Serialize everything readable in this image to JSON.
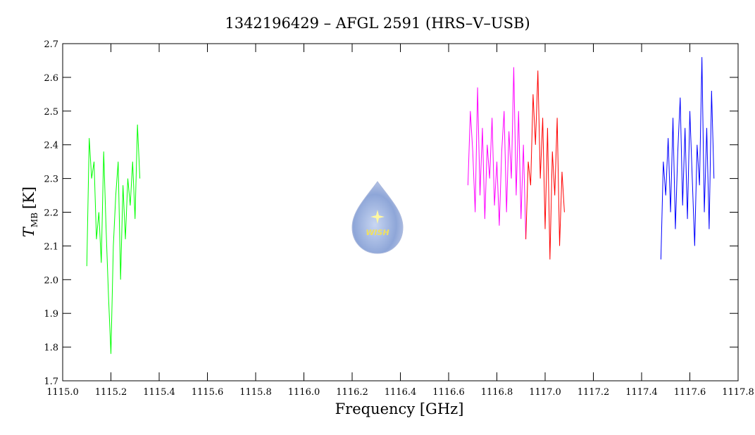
{
  "chart_data": {
    "type": "line",
    "title": "1342196429 – AFGL 2591 (HRS–V–USB)",
    "xlabel": "Frequency [GHz]",
    "ylabel": {
      "symbol": "T",
      "subscript": "MB",
      "unit": "[K]"
    },
    "logo_text": "WISH",
    "xlim": [
      1115.0,
      1117.8
    ],
    "ylim": [
      1.7,
      2.7
    ],
    "xticks": [
      {
        "value": 1115.0,
        "label": "1115.0"
      },
      1115.2,
      1115.4,
      1115.6,
      1115.8,
      {
        "value": 1116.0,
        "label": "1116.0"
      },
      1116.2,
      1116.4,
      1116.6,
      1116.8,
      {
        "value": 1117.0,
        "label": "1117.0"
      },
      1117.2,
      1117.4,
      1117.6,
      1117.8
    ],
    "yticks": [
      1.7,
      1.8,
      1.9,
      {
        "value": 2.0,
        "label": "2.0"
      },
      2.1,
      2.2,
      2.3,
      2.4,
      2.5,
      2.6,
      2.7
    ],
    "series": [
      {
        "color": "#00ff00",
        "x": [
          1115.1,
          1115.11,
          1115.12,
          1115.13,
          1115.14,
          1115.15,
          1115.16,
          1115.17,
          1115.18,
          1115.19,
          1115.2,
          1115.21,
          1115.22,
          1115.23,
          1115.24,
          1115.25,
          1115.26,
          1115.27,
          1115.28,
          1115.29,
          1115.3,
          1115.31,
          1115.32
        ],
        "values": [
          2.04,
          2.42,
          2.3,
          2.35,
          2.12,
          2.2,
          2.05,
          2.38,
          2.15,
          1.95,
          1.78,
          2.1,
          2.25,
          2.35,
          2.0,
          2.28,
          2.12,
          2.3,
          2.22,
          2.35,
          2.18,
          2.46,
          2.3
        ]
      },
      {
        "color": "#ff00ff",
        "x": [
          1116.68,
          1116.69,
          1116.7,
          1116.71,
          1116.72,
          1116.73,
          1116.74,
          1116.75,
          1116.76,
          1116.77,
          1116.78,
          1116.79,
          1116.8,
          1116.81,
          1116.82,
          1116.83,
          1116.84,
          1116.85,
          1116.86,
          1116.87,
          1116.88,
          1116.89,
          1116.9,
          1116.91,
          1116.92
        ],
        "values": [
          2.28,
          2.5,
          2.38,
          2.2,
          2.57,
          2.25,
          2.45,
          2.18,
          2.4,
          2.3,
          2.48,
          2.22,
          2.35,
          2.16,
          2.38,
          2.5,
          2.2,
          2.44,
          2.3,
          2.63,
          2.25,
          2.5,
          2.18,
          2.4,
          2.12
        ]
      },
      {
        "color": "#ff0000",
        "x": [
          1116.92,
          1116.93,
          1116.94,
          1116.95,
          1116.96,
          1116.97,
          1116.98,
          1116.99,
          1117.0,
          1117.01,
          1117.02,
          1117.03,
          1117.04,
          1117.05,
          1117.06,
          1117.07,
          1117.08
        ],
        "values": [
          2.12,
          2.35,
          2.28,
          2.55,
          2.4,
          2.62,
          2.3,
          2.48,
          2.15,
          2.45,
          2.06,
          2.38,
          2.25,
          2.48,
          2.1,
          2.32,
          2.2
        ]
      },
      {
        "color": "#0000ff",
        "x": [
          1117.48,
          1117.49,
          1117.5,
          1117.51,
          1117.52,
          1117.53,
          1117.54,
          1117.55,
          1117.56,
          1117.57,
          1117.58,
          1117.59,
          1117.6,
          1117.61,
          1117.62,
          1117.63,
          1117.64,
          1117.65,
          1117.66,
          1117.67,
          1117.68,
          1117.69,
          1117.7
        ],
        "values": [
          2.06,
          2.35,
          2.25,
          2.42,
          2.2,
          2.48,
          2.15,
          2.38,
          2.54,
          2.22,
          2.45,
          2.18,
          2.5,
          2.3,
          2.1,
          2.4,
          2.28,
          2.66,
          2.2,
          2.45,
          2.15,
          2.56,
          2.3
        ]
      }
    ]
  }
}
